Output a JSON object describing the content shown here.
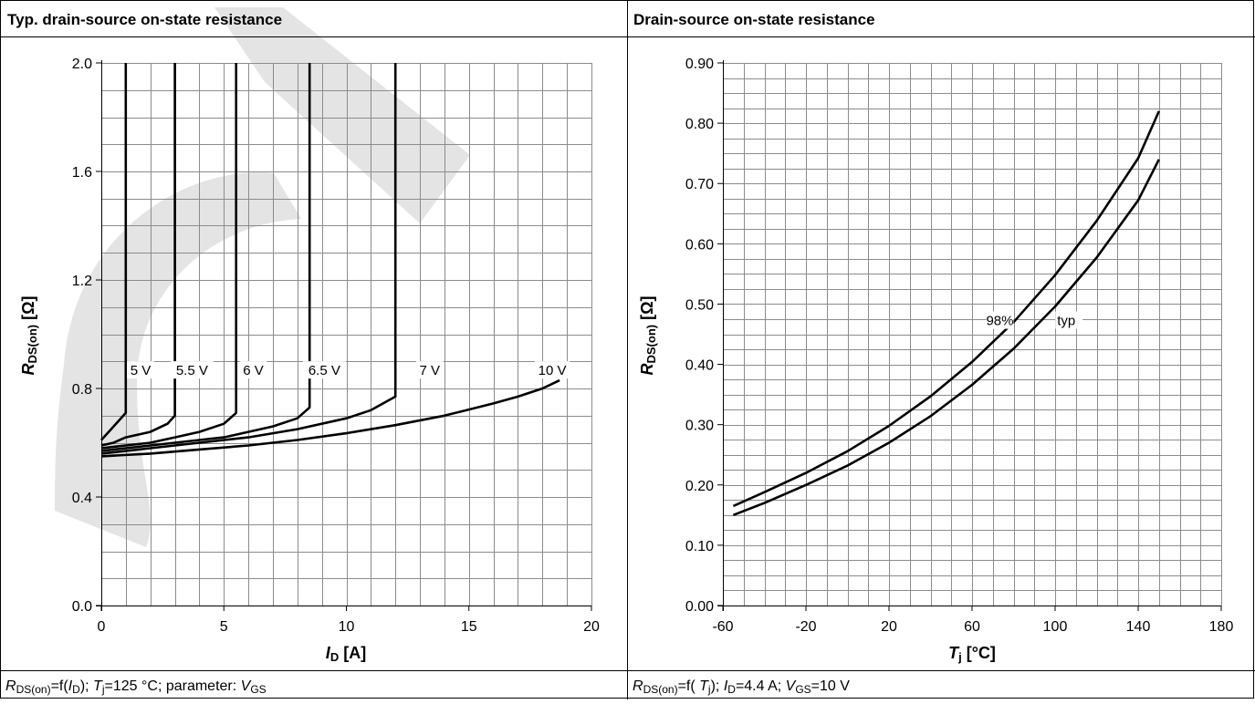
{
  "left_panel": {
    "title": "Typ. drain-source on-state resistance",
    "caption": {
      "r_sym": "R",
      "r_sub": "DS(on)",
      "mid1": "=f(",
      "id_sym": "I",
      "id_sub": "D",
      "mid2": "); ",
      "tj_sym": "T",
      "tj_sub": "j",
      "mid3": "=125 °C; parameter: ",
      "v_sym": "V",
      "v_sub": "GS"
    },
    "xaxis": {
      "sym": "I",
      "sub": "D",
      "unit": " [A]"
    },
    "yaxis": {
      "sym": "R",
      "sub": "DS(on)",
      "unit": " [Ω]"
    }
  },
  "right_panel": {
    "title": "Drain-source on-state resistance",
    "caption": {
      "r_sym": "R",
      "r_sub": "DS(on)",
      "mid1": "=f( ",
      "tj_sym": "T",
      "tj_sub": "j",
      "mid2": "); ",
      "id_sym": "I",
      "id_sub": "D",
      "mid3": "=4.4 A; ",
      "v_sym": "V",
      "v_sub": "GS",
      "mid4": "=10 V"
    },
    "xaxis": {
      "sym": "T",
      "sub": "j",
      "unit": " [°C]"
    },
    "yaxis": {
      "sym": "R",
      "sub": "DS(on)",
      "unit": " [Ω]"
    }
  },
  "chart_data": [
    {
      "type": "line",
      "xlim": [
        0,
        20
      ],
      "ylim": [
        0,
        2.0
      ],
      "xticks": [
        "0",
        "5",
        "10",
        "15",
        "20"
      ],
      "yticks": [
        "0.0",
        "0.4",
        "0.8",
        "1.2",
        "1.6",
        "2.0"
      ],
      "grid": true,
      "series": [
        {
          "name": "5 V",
          "x": [
            0,
            0.3,
            0.7,
            1.0,
            1.0
          ],
          "y": [
            0.61,
            0.64,
            0.68,
            0.71,
            2.0
          ]
        },
        {
          "name": "5.5 V",
          "x": [
            0,
            0.5,
            1.0,
            2.0,
            2.7,
            3.0,
            3.0
          ],
          "y": [
            0.59,
            0.6,
            0.62,
            0.64,
            0.67,
            0.7,
            2.0
          ]
        },
        {
          "name": "6 V",
          "x": [
            0,
            1,
            2,
            3,
            4,
            5,
            5.5,
            5.5
          ],
          "y": [
            0.58,
            0.59,
            0.6,
            0.62,
            0.64,
            0.67,
            0.71,
            2.0
          ]
        },
        {
          "name": "6.5 V",
          "x": [
            0,
            1,
            2,
            3,
            4,
            5,
            6,
            7,
            8,
            8.5,
            8.5
          ],
          "y": [
            0.57,
            0.58,
            0.59,
            0.6,
            0.61,
            0.62,
            0.64,
            0.66,
            0.69,
            0.73,
            2.0
          ]
        },
        {
          "name": "7 V",
          "x": [
            0,
            2,
            4,
            6,
            8,
            10,
            11,
            12,
            12
          ],
          "y": [
            0.56,
            0.58,
            0.6,
            0.62,
            0.65,
            0.69,
            0.72,
            0.77,
            2.0
          ]
        },
        {
          "name": "10 V",
          "x": [
            0,
            2,
            4,
            6,
            8,
            10,
            12,
            14,
            16,
            17,
            18,
            18.7
          ],
          "y": [
            0.55,
            0.56,
            0.575,
            0.59,
            0.61,
            0.635,
            0.665,
            0.7,
            0.745,
            0.77,
            0.8,
            0.83
          ]
        }
      ]
    },
    {
      "type": "line",
      "xlim": [
        -60,
        180
      ],
      "ylim": [
        0,
        0.9
      ],
      "xticks": [
        "-60",
        "-20",
        "20",
        "60",
        "100",
        "140",
        "180"
      ],
      "yticks": [
        "0.00",
        "0.10",
        "0.20",
        "0.30",
        "0.40",
        "0.50",
        "0.60",
        "0.70",
        "0.80",
        "0.90"
      ],
      "grid": true,
      "series": [
        {
          "name": "98%",
          "x": [
            -55,
            -40,
            -20,
            0,
            20,
            40,
            60,
            80,
            100,
            120,
            140,
            150
          ],
          "y": [
            0.165,
            0.188,
            0.22,
            0.256,
            0.298,
            0.347,
            0.404,
            0.47,
            0.548,
            0.638,
            0.742,
            0.82
          ]
        },
        {
          "name": "typ",
          "x": [
            -55,
            -40,
            -20,
            0,
            20,
            40,
            60,
            80,
            100,
            120,
            140,
            150
          ],
          "y": [
            0.15,
            0.17,
            0.2,
            0.232,
            0.27,
            0.314,
            0.366,
            0.426,
            0.496,
            0.577,
            0.672,
            0.74
          ]
        }
      ]
    }
  ]
}
